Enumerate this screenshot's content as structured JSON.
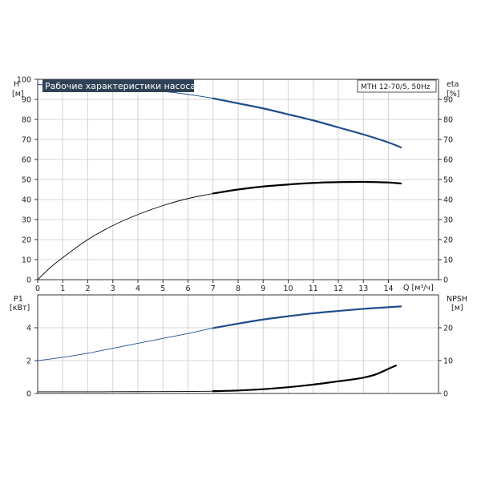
{
  "chart_data": [
    {
      "type": "line",
      "title": "Рабочие характеристики насоса",
      "model_label": "MTH 12-70/5, 50Hz",
      "left_axis": {
        "label": "H",
        "unit": "[м]",
        "ylim": [
          0,
          100
        ],
        "ticks": [
          0,
          10,
          20,
          30,
          40,
          50,
          60,
          70,
          80,
          90,
          100
        ]
      },
      "right_axis": {
        "label": "eta",
        "unit": "[%]",
        "ylim": [
          0,
          100
        ],
        "ticks": [
          0,
          10,
          20,
          30,
          40,
          50,
          60,
          70,
          80,
          90
        ]
      },
      "x_axis": {
        "label": "Q [м³/ч]",
        "xlim": [
          0,
          16
        ],
        "ticks": [
          0,
          1,
          2,
          3,
          4,
          5,
          6,
          7,
          8,
          9,
          10,
          11,
          12,
          13,
          14
        ]
      },
      "grid": true,
      "series": [
        {
          "id": "head",
          "axis": "left",
          "color": "#1f4e8c",
          "bold_from_x": 7,
          "x": [
            0,
            1,
            2,
            3,
            4,
            5,
            6,
            7,
            8,
            9,
            10,
            11,
            12,
            13,
            14,
            14.5
          ],
          "y": [
            97.5,
            96.5,
            96,
            95.5,
            95,
            94,
            92.5,
            90.5,
            88,
            85.5,
            82.5,
            79.5,
            76,
            72.5,
            68.5,
            66
          ]
        },
        {
          "id": "efficiency",
          "axis": "right",
          "color": "#000000",
          "bold_from_x": 7,
          "x": [
            0,
            0.5,
            1,
            2,
            3,
            4,
            5,
            6,
            7,
            8,
            9,
            10,
            11,
            12,
            13,
            14,
            14.5
          ],
          "y": [
            0,
            6,
            11,
            20,
            27,
            32.5,
            37,
            40.5,
            43,
            45,
            46.5,
            47.5,
            48.3,
            48.7,
            48.8,
            48.5,
            48
          ]
        }
      ]
    },
    {
      "type": "line",
      "left_axis": {
        "label": "P1",
        "unit": "[кВт]",
        "ylim": [
          0,
          6
        ],
        "ticks": [
          0,
          2,
          4
        ]
      },
      "right_axis": {
        "label": "NPSH",
        "unit": "[м]",
        "ylim": [
          0,
          30
        ],
        "ticks": [
          0,
          10,
          20
        ]
      },
      "x_axis": {
        "xlim": [
          0,
          16
        ]
      },
      "grid": true,
      "series": [
        {
          "id": "power",
          "axis": "left",
          "color": "#1f4e8c",
          "bold_from_x": 7,
          "x": [
            0,
            1,
            2,
            3,
            4,
            5,
            6,
            7,
            8,
            9,
            10,
            11,
            12,
            13,
            14,
            14.5
          ],
          "y": [
            2.0,
            2.2,
            2.45,
            2.75,
            3.05,
            3.35,
            3.65,
            3.98,
            4.25,
            4.5,
            4.7,
            4.88,
            5.02,
            5.15,
            5.25,
            5.3
          ]
        },
        {
          "id": "npsh",
          "axis": "right",
          "color": "#000000",
          "bold_from_x": 7,
          "x": [
            0,
            2,
            4,
            6,
            7,
            8,
            9,
            10,
            11,
            12,
            12.5,
            13,
            13.5,
            14,
            14.3
          ],
          "y": [
            0.5,
            0.5,
            0.55,
            0.6,
            0.7,
            0.9,
            1.3,
            1.9,
            2.7,
            3.7,
            4.2,
            4.8,
            5.8,
            7.5,
            8.5
          ]
        }
      ]
    }
  ]
}
